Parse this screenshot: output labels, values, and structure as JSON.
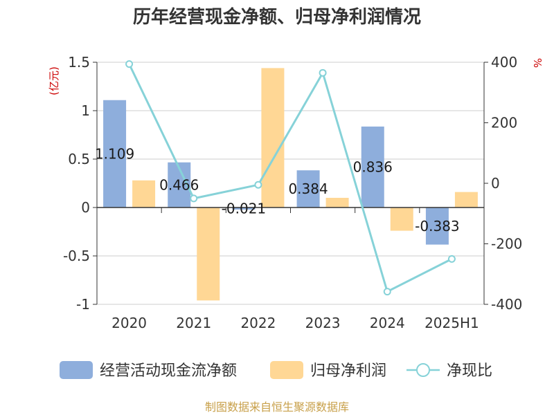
{
  "chart_data": {
    "type": "bar",
    "title": "历年经营现金净额、归母净利润情况",
    "left_unit": "(亿元)",
    "right_unit": "%",
    "categories": [
      "2020",
      "2021",
      "2022",
      "2023",
      "2024",
      "2025H1"
    ],
    "left_axis": {
      "min": -1,
      "max": 1.5,
      "ticks": [
        "1.5",
        "1",
        "0.5",
        "0",
        "-0.5",
        "-1"
      ],
      "tick_values": [
        1.5,
        1,
        0.5,
        0,
        -0.5,
        -1
      ]
    },
    "right_axis": {
      "min": -400,
      "max": 400,
      "ticks": [
        "400",
        "200",
        "0",
        "-200",
        "-400"
      ],
      "tick_values": [
        400,
        200,
        0,
        -200,
        -400
      ]
    },
    "grid": true,
    "legend_position": "bottom",
    "series": [
      {
        "name": "经营活动现金流净额",
        "type": "bar",
        "axis": "left",
        "color": "#8eaedc",
        "values": [
          1.109,
          0.466,
          -0.021,
          0.384,
          0.836,
          -0.383
        ],
        "labels": [
          "1.109",
          "0.466",
          "-0.021",
          "0.384",
          "0.836",
          "-0.383"
        ]
      },
      {
        "name": "归母净利润",
        "type": "bar",
        "axis": "left",
        "color": "#ffd795",
        "values": [
          0.28,
          -0.96,
          1.44,
          0.1,
          -0.24,
          0.16
        ]
      },
      {
        "name": "净现比",
        "type": "line",
        "axis": "right",
        "color": "#86d2d8",
        "values": [
          394,
          -50,
          -5,
          365,
          -358,
          -250
        ]
      }
    ]
  },
  "source_note": "制图数据来自恒生聚源数据库"
}
